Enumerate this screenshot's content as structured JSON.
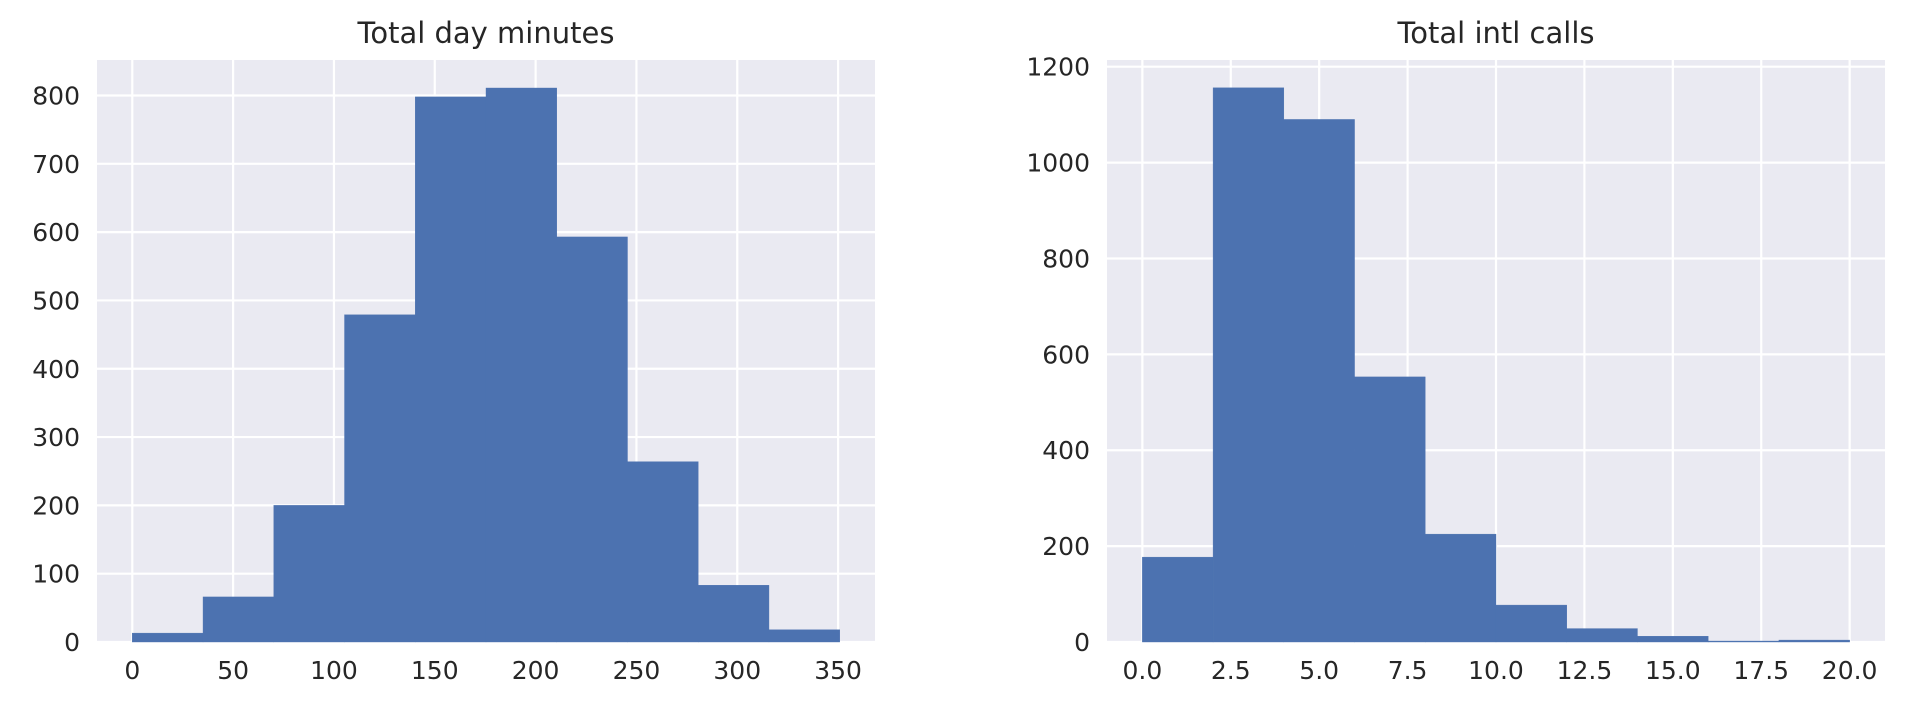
{
  "chart_data": [
    {
      "type": "bar",
      "title": "Total day minutes",
      "xlabel": "",
      "ylabel": "",
      "bin_edges": [
        0,
        35.08,
        70.16,
        105.24,
        140.32,
        175.4,
        210.48,
        245.56,
        280.64,
        315.72,
        350.8
      ],
      "values": [
        13,
        66,
        200,
        479,
        798,
        811,
        593,
        264,
        83,
        18
      ],
      "xlim": [
        -17.5,
        368.3
      ],
      "ylim": [
        0,
        852
      ],
      "xticks": [
        0,
        50,
        100,
        150,
        200,
        250,
        300,
        350
      ],
      "yticks": [
        0,
        100,
        200,
        300,
        400,
        500,
        600,
        700,
        800
      ],
      "grid": true,
      "legend": "none",
      "bar_color": "#4c72b0",
      "background_color": "#eaeaf2"
    },
    {
      "type": "bar",
      "title": "Total intl calls",
      "xlabel": "",
      "ylabel": "",
      "bin_edges": [
        0,
        2,
        4,
        6,
        8,
        10,
        12,
        14,
        16,
        18,
        20
      ],
      "values": [
        177,
        1156,
        1090,
        553,
        225,
        77,
        28,
        12,
        2,
        4
      ],
      "xlim": [
        -1,
        21
      ],
      "ylim": [
        0,
        1214
      ],
      "xticks": [
        "0.0",
        "2.5",
        "5.0",
        "7.5",
        "10.0",
        "12.5",
        "15.0",
        "17.5",
        "20.0"
      ],
      "yticks": [
        0,
        200,
        400,
        600,
        800,
        1000,
        1200
      ],
      "grid": true,
      "legend": "none",
      "bar_color": "#4c72b0",
      "background_color": "#eaeaf2"
    }
  ]
}
